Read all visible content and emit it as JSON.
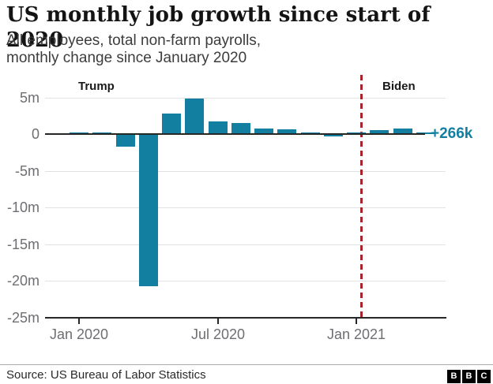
{
  "header": {
    "title": "US monthly job growth since start of 2020",
    "subtitle": "All employees, total non-farm payrolls,\nmonthly change since January 2020"
  },
  "chart_data": {
    "type": "bar",
    "title": "US monthly job growth since start of 2020",
    "subtitle": "All employees, total non-farm payrolls, monthly change since January 2020",
    "unit": "millions of jobs, monthly change",
    "categories": [
      "Jan 2020",
      "Feb 2020",
      "Mar 2020",
      "Apr 2020",
      "May 2020",
      "Jun 2020",
      "Jul 2020",
      "Aug 2020",
      "Sep 2020",
      "Oct 2020",
      "Nov 2020",
      "Dec 2020",
      "Jan 2021",
      "Feb 2021",
      "Mar 2021",
      "Apr 2021"
    ],
    "values": [
      0.2,
      0.25,
      -1.7,
      -20.7,
      2.8,
      4.8,
      1.7,
      1.5,
      0.7,
      0.6,
      0.25,
      -0.3,
      0.2,
      0.5,
      0.8,
      0.266
    ],
    "ylim": [
      -25,
      5
    ],
    "ytick_values": [
      5,
      0,
      -5,
      -10,
      -15,
      -20,
      -25
    ],
    "ytick_labels": [
      "5m",
      "0",
      "-5m",
      "-10m",
      "-15m",
      "-20m",
      "-25m"
    ],
    "xticks": [
      {
        "label": "Jan 2020",
        "index": 0
      },
      {
        "label": "Jul 2020",
        "index": 6
      },
      {
        "label": "Jan 2021",
        "index": 12
      }
    ],
    "grid": true,
    "legend": null,
    "bar_color": "#137fa0",
    "annotations": {
      "trump_label": "Trump",
      "biden_label": "Biden",
      "latest_value_label": "+266k",
      "latest_value_color": "#137fa0",
      "divider_line": {
        "style": "dashed",
        "color": "#a8232b",
        "between": [
          "Jan 2021",
          "Feb 2021"
        ]
      }
    }
  },
  "footer": {
    "source": "Source: US Bureau of Labor Statistics",
    "logo_letters": [
      "B",
      "B",
      "C"
    ]
  },
  "colors": {
    "bar_teal": "#137fa0",
    "divider_red": "#a8232b",
    "axis_dark": "#272727",
    "gridline_gray": "#e2e2e2",
    "axis_label_gray": "#6e6e73"
  }
}
